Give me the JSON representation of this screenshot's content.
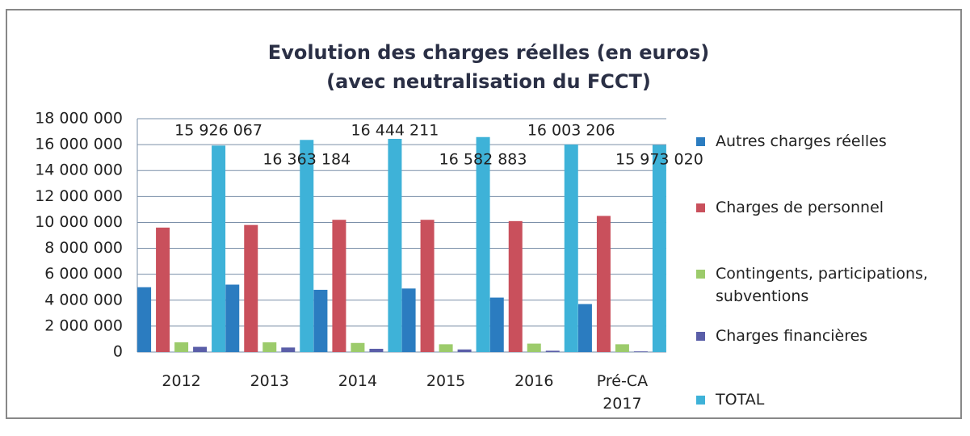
{
  "chart_data": {
    "type": "bar",
    "title": "Evolution des charges réelles (en euros)",
    "subtitle": "(avec neutralisation du FCCT)",
    "categories": [
      "2012",
      "2013",
      "2014",
      "2015",
      "2016",
      "Pré-CA 2017"
    ],
    "series": [
      {
        "name": "Autres charges réelles",
        "color": "#2b7cc0",
        "values": [
          5000000,
          5200000,
          4800000,
          4900000,
          4200000,
          3700000
        ]
      },
      {
        "name": "Charges de personnel",
        "color": "#c9505c",
        "values": [
          9600000,
          9800000,
          10200000,
          10200000,
          10100000,
          10500000
        ]
      },
      {
        "name": "Contingents, participations, subventions",
        "color": "#9ccb6b",
        "values": [
          750000,
          750000,
          700000,
          600000,
          650000,
          600000
        ]
      },
      {
        "name": "Charges financières",
        "color": "#5a5ea8",
        "values": [
          400000,
          350000,
          250000,
          200000,
          100000,
          50000
        ]
      },
      {
        "name": "TOTAL",
        "color": "#3eb2d8",
        "values": [
          15926067,
          16363184,
          16444211,
          16582883,
          16003206,
          15973020
        ],
        "value_labels": [
          "15 926 067",
          "16 363 184",
          "16 444 211",
          "16 582 883",
          "16 003 206",
          "15 973 020"
        ]
      }
    ],
    "ylim": [
      0,
      18000000
    ],
    "yticks": [
      0,
      {
        "value": 2000000,
        "label": "2 000 000"
      },
      {
        "value": 4000000,
        "label": "4 000 000"
      },
      {
        "value": 6000000,
        "label": "6 000 000"
      },
      {
        "value": 8000000,
        "label": "8 000 000"
      },
      {
        "value": 10000000,
        "label": "10 000 000"
      },
      {
        "value": 12000000,
        "label": "12 000 000"
      },
      {
        "value": 14000000,
        "label": "14 000 000"
      },
      {
        "value": 16000000,
        "label": "16 000 000"
      },
      {
        "value": 18000000,
        "label": "18 000 000"
      }
    ],
    "grid": true,
    "legend": "right"
  }
}
